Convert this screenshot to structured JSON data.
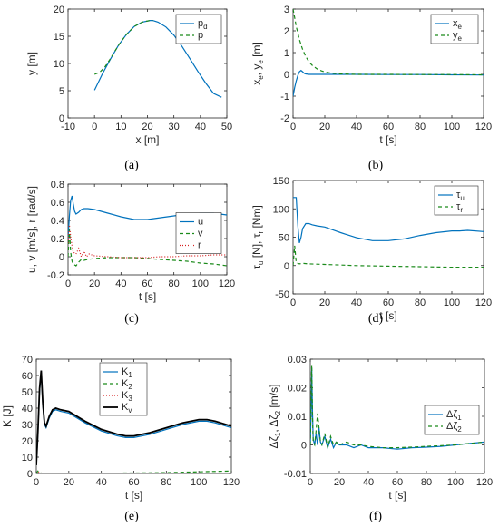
{
  "colors": {
    "blue": "#0072bd",
    "green": "#1a8a1a",
    "red": "#d62020",
    "black": "#000000"
  },
  "chart_data": [
    {
      "id": "a",
      "type": "line",
      "caption": "(a)",
      "xlabel_html": "x [m]",
      "ylabel_html": "y [m]",
      "xlim": [
        -10,
        50
      ],
      "ylim": [
        0,
        20
      ],
      "xticks": [
        -10,
        0,
        10,
        20,
        30,
        40,
        50
      ],
      "yticks": [
        0,
        5,
        10,
        15,
        20
      ],
      "legend": {
        "position": "top-right"
      },
      "series": [
        {
          "name": "pd",
          "label_html": "p<tspan class='leg-sub' dy='3'>d</tspan>",
          "color": "blue",
          "dash": "",
          "x": [
            0,
            3,
            6,
            9,
            12,
            15,
            18,
            21,
            22,
            24,
            27,
            30,
            33,
            36,
            39,
            42,
            45,
            48
          ],
          "y": [
            5.1,
            8.1,
            10.8,
            13.3,
            15.3,
            16.8,
            17.6,
            17.9,
            17.9,
            17.6,
            16.7,
            15.2,
            13.2,
            10.9,
            8.6,
            6.4,
            4.5,
            3.8
          ]
        },
        {
          "name": "p",
          "label_html": "p",
          "color": "green",
          "dash": "4,3",
          "x": [
            0,
            2,
            4,
            6,
            8,
            10,
            12,
            15,
            18,
            21,
            22
          ],
          "y": [
            8.0,
            8.4,
            9.4,
            10.9,
            12.5,
            14.0,
            15.3,
            16.8,
            17.6,
            17.9,
            17.9
          ]
        }
      ]
    },
    {
      "id": "b",
      "type": "line",
      "caption": "(b)",
      "xlabel_html": "t [s]",
      "ylabel_html": "x<tspan class='leg-sub' dy='3'>e</tspan><tspan dy='-3'>, y</tspan><tspan class='leg-sub' dy='3'>e</tspan><tspan dy='-3'> [m]</tspan>",
      "xlim": [
        0,
        120
      ],
      "ylim": [
        -2,
        3
      ],
      "xticks": [
        0,
        20,
        40,
        60,
        80,
        100,
        120
      ],
      "yticks": [
        -2,
        -1,
        0,
        1,
        2,
        3
      ],
      "legend": {
        "position": "top-right"
      },
      "series": [
        {
          "name": "xe",
          "label_html": "x<tspan class='leg-sub' dy='3'>e</tspan>",
          "color": "blue",
          "dash": "",
          "x": [
            0,
            1,
            2,
            3,
            4,
            5,
            6,
            7,
            8,
            10,
            15,
            20,
            40,
            60,
            80,
            100,
            120
          ],
          "y": [
            -1.0,
            -0.6,
            -0.3,
            -0.05,
            0.12,
            0.18,
            0.12,
            0.05,
            0.02,
            0.0,
            0.0,
            0.0,
            0.0,
            -0.01,
            -0.01,
            -0.02,
            -0.03
          ]
        },
        {
          "name": "ye",
          "label_html": "y<tspan class='leg-sub' dy='3'>e</tspan>",
          "color": "green",
          "dash": "4,3",
          "x": [
            0,
            1,
            2,
            4,
            6,
            8,
            10,
            12,
            15,
            18,
            20,
            25,
            30,
            40,
            60,
            80,
            100,
            120
          ],
          "y": [
            3.0,
            2.6,
            2.2,
            1.6,
            1.15,
            0.82,
            0.58,
            0.42,
            0.26,
            0.16,
            0.11,
            0.05,
            0.02,
            0.0,
            0.0,
            -0.01,
            -0.01,
            -0.02
          ]
        }
      ]
    },
    {
      "id": "c",
      "type": "line",
      "caption": "(c)",
      "xlabel_html": "t [s]",
      "ylabel_html": "u, v [m/s], r [rad/s]",
      "xlim": [
        0,
        120
      ],
      "ylim": [
        -0.2,
        0.8
      ],
      "xticks": [
        0,
        20,
        40,
        60,
        80,
        100,
        120
      ],
      "yticks": [
        -0.2,
        0,
        0.2,
        0.4,
        0.6,
        0.8
      ],
      "legend": {
        "position": "right"
      },
      "series": [
        {
          "name": "u",
          "label_html": "u",
          "color": "blue",
          "dash": "",
          "x": [
            0,
            1,
            2,
            3,
            4,
            5,
            6,
            8,
            10,
            12,
            15,
            20,
            30,
            40,
            50,
            55,
            60,
            70,
            80,
            90,
            100,
            110,
            120
          ],
          "y": [
            0.2,
            0.45,
            0.62,
            0.67,
            0.58,
            0.5,
            0.47,
            0.49,
            0.52,
            0.53,
            0.53,
            0.52,
            0.48,
            0.44,
            0.41,
            0.41,
            0.41,
            0.43,
            0.45,
            0.47,
            0.48,
            0.48,
            0.46
          ]
        },
        {
          "name": "v",
          "label_html": "v",
          "color": "green",
          "dash": "4,3",
          "x": [
            0,
            1,
            2,
            3,
            4,
            6,
            8,
            10,
            12,
            15,
            20,
            30,
            40,
            50,
            60,
            70,
            80,
            90,
            100,
            110,
            120
          ],
          "y": [
            0.0,
            0.3,
            0.05,
            -0.05,
            -0.08,
            -0.1,
            -0.06,
            -0.03,
            -0.04,
            -0.03,
            -0.02,
            -0.01,
            -0.01,
            -0.01,
            -0.02,
            -0.03,
            -0.04,
            -0.05,
            -0.07,
            -0.08,
            -0.1
          ]
        },
        {
          "name": "r",
          "label_html": "r",
          "color": "red",
          "dash": "1,2",
          "x": [
            0,
            1,
            2,
            3,
            4,
            6,
            8,
            10,
            12,
            14,
            16,
            20,
            30,
            40,
            50,
            60,
            70,
            80,
            90,
            100,
            110,
            120
          ],
          "y": [
            0.15,
            0.35,
            0.22,
            0.12,
            0.05,
            0.03,
            0.09,
            0.0,
            0.06,
            0.0,
            0.03,
            0.01,
            0.0,
            -0.01,
            -0.01,
            -0.01,
            0.0,
            0.0,
            0.01,
            0.01,
            0.02,
            0.02
          ]
        }
      ]
    },
    {
      "id": "d",
      "type": "line",
      "caption": "(d)",
      "xlabel_html": "t [s]",
      "ylabel_html": "τ<tspan class='leg-sub' dy='3'>u</tspan><tspan dy='-3'> [N], τ</tspan><tspan class='leg-sub' dy='3'>r</tspan><tspan dy='-3'> [Nm]</tspan>",
      "xlim": [
        0,
        120
      ],
      "ylim": [
        -50,
        150
      ],
      "xticks": [
        0,
        20,
        40,
        60,
        80,
        100,
        120
      ],
      "yticks": [
        -50,
        0,
        50,
        100,
        150
      ],
      "legend": {
        "position": "top-right"
      },
      "series": [
        {
          "name": "τu",
          "label_html": "τ<tspan class='leg-sub' dy='3'>u</tspan>",
          "color": "blue",
          "dash": "",
          "x": [
            0,
            1,
            2,
            3,
            4,
            5,
            6,
            8,
            10,
            12,
            15,
            20,
            30,
            40,
            50,
            60,
            70,
            80,
            90,
            100,
            105,
            110,
            120
          ],
          "y": [
            120,
            120,
            120,
            70,
            40,
            50,
            65,
            74,
            74,
            72,
            70,
            68,
            58,
            49,
            44,
            44,
            47,
            53,
            58,
            61,
            61,
            62,
            60
          ]
        },
        {
          "name": "τr",
          "label_html": "τ<tspan class='leg-sub' dy='3'>r</tspan>",
          "color": "green",
          "dash": "4,3",
          "x": [
            0,
            1,
            2,
            4,
            6,
            10,
            20,
            40,
            60,
            80,
            100,
            120
          ],
          "y": [
            0,
            35,
            5,
            3,
            4,
            3,
            2,
            0,
            -1,
            -2,
            -3,
            -3
          ]
        }
      ]
    },
    {
      "id": "e",
      "type": "line",
      "caption": "(e)",
      "xlabel_html": "t [s]",
      "ylabel_html": "K [J]",
      "xlim": [
        0,
        120
      ],
      "ylim": [
        0,
        70
      ],
      "xticks": [
        0,
        20,
        40,
        60,
        80,
        100,
        120
      ],
      "yticks": [
        0,
        10,
        20,
        30,
        40,
        50,
        60,
        70
      ],
      "legend": {
        "position": "top-left"
      },
      "series": [
        {
          "name": "K1",
          "label_html": "K<tspan class='leg-sub' dy='3'>1</tspan>",
          "color": "blue",
          "dash": "",
          "x": [
            0,
            1,
            2,
            3,
            4,
            5,
            6,
            8,
            10,
            12,
            15,
            20,
            30,
            40,
            50,
            55,
            60,
            70,
            80,
            90,
            100,
            105,
            110,
            120
          ],
          "y": [
            5,
            25,
            50,
            62,
            42,
            30,
            28,
            34,
            38,
            39,
            38,
            37,
            31,
            26,
            23,
            22,
            22,
            24,
            27,
            30,
            32,
            32,
            31,
            28
          ]
        },
        {
          "name": "K2",
          "label_html": "K<tspan class='leg-sub' dy='3'>2</tspan>",
          "color": "green",
          "dash": "4,3",
          "x": [
            0,
            1,
            2,
            3,
            5,
            10,
            20,
            40,
            60,
            80,
            100,
            120
          ],
          "y": [
            0,
            1.5,
            0.5,
            0.3,
            0.2,
            0.2,
            0.2,
            0.2,
            0.3,
            0.5,
            1.0,
            1.5
          ]
        },
        {
          "name": "K3",
          "label_html": "K<tspan class='leg-sub' dy='3'>3</tspan>",
          "color": "red",
          "dash": "1,2",
          "x": [
            0,
            1,
            2,
            3,
            5,
            10,
            20,
            40,
            60,
            80,
            100,
            120
          ],
          "y": [
            0,
            1.0,
            0.4,
            0.2,
            0.1,
            0.1,
            0.1,
            0.1,
            0.1,
            0.1,
            0.1,
            0.1
          ]
        },
        {
          "name": "Kv",
          "label_html": "K<tspan class='leg-sub' dy='3'>v</tspan>",
          "color": "black",
          "dash": "",
          "x": [
            0,
            1,
            2,
            3,
            4,
            5,
            6,
            8,
            10,
            12,
            15,
            20,
            30,
            40,
            50,
            55,
            60,
            70,
            80,
            90,
            100,
            105,
            110,
            120
          ],
          "y": [
            5,
            26,
            52,
            63,
            43,
            31,
            29,
            35,
            39,
            40,
            39,
            38,
            32,
            27,
            24,
            23,
            23,
            25,
            28,
            31,
            33,
            33,
            32,
            29
          ]
        }
      ]
    },
    {
      "id": "f",
      "type": "line",
      "caption": "(f)",
      "xlabel_html": "t [s]",
      "ylabel_html": "Δζ<tspan class='leg-sub' dy='3'>1</tspan><tspan dy='-3'>, Δζ</tspan><tspan class='leg-sub' dy='3'>2</tspan><tspan dy='-3'> [m/s]</tspan>",
      "xlim": [
        0,
        120
      ],
      "ylim": [
        -0.01,
        0.03
      ],
      "xticks": [
        0,
        20,
        40,
        60,
        80,
        100,
        120
      ],
      "yticks": [
        -0.01,
        0,
        0.01,
        0.02,
        0.03
      ],
      "legend": {
        "position": "right"
      },
      "series": [
        {
          "name": "Δζ1",
          "label_html": "Δζ<tspan class='leg-sub' dy='3'>1</tspan>",
          "color": "blue",
          "dash": "",
          "x": [
            0,
            0.5,
            1,
            1.5,
            2,
            3,
            4,
            5,
            6,
            7,
            8,
            10,
            12,
            14,
            16,
            18,
            20,
            25,
            30,
            35,
            40,
            50,
            60,
            70,
            80,
            90,
            100,
            110,
            120
          ],
          "y": [
            0.0,
            0.01,
            0.027,
            0.012,
            0.002,
            0.0,
            0.004,
            0.0,
            0.006,
            0.001,
            0.0,
            0.003,
            -0.001,
            0.002,
            -0.001,
            0.001,
            0.0,
            0.0,
            -0.001,
            0.0,
            -0.001,
            -0.001,
            -0.0015,
            -0.001,
            -0.0008,
            -0.0005,
            0.0,
            0.0005,
            0.001
          ]
        },
        {
          "name": "Δζ2",
          "label_html": "Δζ<tspan class='leg-sub' dy='3'>2</tspan>",
          "color": "green",
          "dash": "4,3",
          "x": [
            0,
            0.5,
            1,
            1.5,
            2,
            3,
            4,
            5,
            6,
            7,
            8,
            10,
            12,
            14,
            16,
            18,
            20,
            25,
            30,
            35,
            40,
            50,
            60,
            70,
            80,
            90,
            100,
            110,
            120
          ],
          "y": [
            0.0,
            0.015,
            0.028,
            0.01,
            0.001,
            0.0,
            0.005,
            0.011,
            0.006,
            0.001,
            0.0,
            0.004,
            -0.001,
            0.003,
            0.0,
            0.001,
            0.0,
            0.001,
            0.0,
            0.0,
            -0.0005,
            -0.001,
            -0.001,
            -0.0008,
            -0.0005,
            -0.0003,
            0.0,
            0.0005,
            0.001
          ]
        }
      ]
    }
  ]
}
